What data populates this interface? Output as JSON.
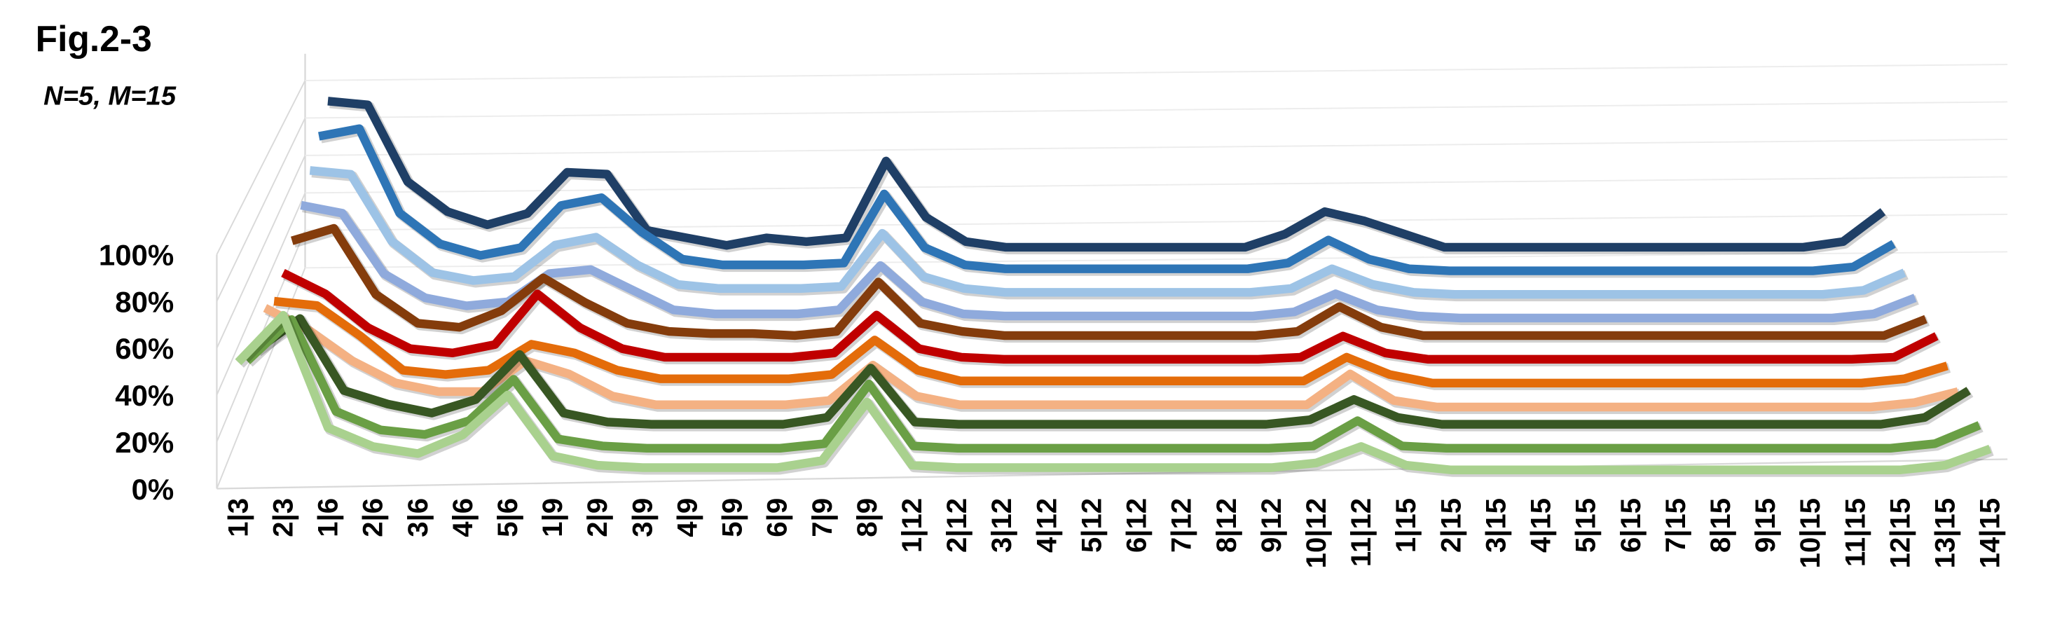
{
  "chart_data": {
    "type": "line",
    "title": "Fig.2-3",
    "subtitle": "N=5, M=15",
    "categories": [
      "1|3",
      "2|3",
      "1|6",
      "2|6",
      "3|6",
      "4|6",
      "5|6",
      "1|9",
      "2|9",
      "3|9",
      "4|9",
      "5|9",
      "6|9",
      "7|9",
      "8|9",
      "1|12",
      "2|12",
      "3|12",
      "4|12",
      "5|12",
      "6|12",
      "7|12",
      "8|12",
      "9|12",
      "10|12",
      "11|12",
      "1|15",
      "2|15",
      "3|15",
      "4|15",
      "5|15",
      "6|15",
      "7|15",
      "8|15",
      "9|15",
      "10|15",
      "11|15",
      "12|15",
      "13|15",
      "14|15"
    ],
    "ylim": [
      0,
      100
    ],
    "yticks": [
      {
        "value": 0,
        "label": "0%"
      },
      {
        "value": 20,
        "label": "20%"
      },
      {
        "value": 40,
        "label": "40%"
      },
      {
        "value": 60,
        "label": "60%"
      },
      {
        "value": 80,
        "label": "80%"
      },
      {
        "value": 100,
        "label": "100%"
      }
    ],
    "grid": true,
    "series": [
      {
        "color": "#a9d18e",
        "values": [
          54,
          74,
          26,
          18,
          15,
          23,
          40,
          14,
          10,
          9,
          9,
          9,
          9,
          12,
          37,
          10,
          9,
          9,
          9,
          9,
          9,
          9,
          9,
          9,
          11,
          18,
          10,
          8,
          8,
          8,
          8,
          8,
          8,
          8,
          8,
          8,
          8,
          8,
          10,
          17
        ]
      },
      {
        "color": "#6a9f45",
        "values": [
          46,
          64,
          24,
          16,
          14,
          20,
          38,
          12,
          9,
          8,
          8,
          8,
          8,
          10,
          36,
          9,
          8,
          8,
          8,
          8,
          8,
          8,
          8,
          8,
          9,
          20,
          9,
          8,
          8,
          8,
          8,
          8,
          8,
          8,
          8,
          8,
          8,
          8,
          10,
          18
        ]
      },
      {
        "color": "#385723",
        "values": [
          42,
          56,
          24,
          18,
          14,
          20,
          40,
          14,
          10,
          9,
          9,
          9,
          9,
          12,
          34,
          10,
          9,
          9,
          9,
          9,
          9,
          9,
          9,
          9,
          11,
          20,
          12,
          9,
          9,
          9,
          9,
          9,
          9,
          9,
          9,
          9,
          9,
          9,
          12,
          24
        ]
      },
      {
        "color": "#f4b183",
        "values": [
          52,
          42,
          28,
          18,
          14,
          14,
          28,
          22,
          12,
          8,
          8,
          8,
          8,
          10,
          26,
          12,
          8,
          8,
          8,
          8,
          8,
          8,
          8,
          8,
          8,
          22,
          10,
          7,
          7,
          7,
          7,
          7,
          7,
          7,
          7,
          7,
          7,
          7,
          9,
          14
        ]
      },
      {
        "color": "#e46c0a",
        "values": [
          46,
          44,
          30,
          14,
          12,
          14,
          26,
          22,
          14,
          10,
          10,
          10,
          10,
          12,
          28,
          14,
          9,
          9,
          9,
          9,
          9,
          9,
          9,
          9,
          9,
          20,
          12,
          8,
          8,
          8,
          8,
          8,
          8,
          8,
          8,
          8,
          8,
          8,
          10,
          16
        ]
      },
      {
        "color": "#c00000",
        "values": [
          50,
          40,
          24,
          14,
          12,
          16,
          40,
          24,
          14,
          10,
          10,
          10,
          10,
          12,
          30,
          14,
          10,
          9,
          9,
          9,
          9,
          9,
          9,
          9,
          10,
          20,
          12,
          9,
          9,
          9,
          9,
          9,
          9,
          9,
          9,
          9,
          9,
          9,
          10,
          20
        ]
      },
      {
        "color": "#843c0c",
        "values": [
          56,
          62,
          30,
          16,
          14,
          22,
          38,
          26,
          16,
          12,
          11,
          11,
          10,
          12,
          36,
          16,
          12,
          10,
          10,
          10,
          10,
          10,
          10,
          10,
          12,
          24,
          14,
          10,
          10,
          10,
          10,
          10,
          10,
          10,
          10,
          10,
          10,
          10,
          10,
          18
        ]
      },
      {
        "color": "#8faadc",
        "values": [
          64,
          60,
          30,
          18,
          14,
          16,
          30,
          32,
          22,
          12,
          10,
          10,
          10,
          12,
          34,
          16,
          10,
          9,
          9,
          9,
          9,
          9,
          9,
          9,
          11,
          20,
          12,
          9,
          8,
          8,
          8,
          8,
          8,
          8,
          8,
          8,
          8,
          8,
          10,
          18
        ]
      },
      {
        "color": "#9dc3e6",
        "values": [
          72,
          70,
          36,
          20,
          16,
          18,
          34,
          38,
          24,
          14,
          12,
          12,
          12,
          13,
          40,
          18,
          12,
          10,
          10,
          10,
          10,
          10,
          10,
          10,
          12,
          22,
          14,
          10,
          9,
          9,
          9,
          9,
          9,
          9,
          9,
          9,
          9,
          9,
          11,
          20
        ]
      },
      {
        "color": "#2e75b6",
        "values": [
          80,
          84,
          40,
          24,
          18,
          22,
          44,
          48,
          30,
          16,
          13,
          13,
          13,
          14,
          50,
          22,
          13,
          11,
          11,
          11,
          11,
          11,
          11,
          11,
          14,
          26,
          16,
          11,
          10,
          10,
          10,
          10,
          10,
          10,
          10,
          10,
          10,
          10,
          12,
          24
        ]
      },
      {
        "color": "#1f3f66",
        "values": [
          89,
          87,
          46,
          30,
          23,
          29,
          51,
          50,
          20,
          16,
          12,
          16,
          14,
          16,
          57,
          27,
          14,
          11,
          11,
          11,
          11,
          11,
          11,
          11,
          18,
          30,
          25,
          18,
          11,
          11,
          11,
          11,
          11,
          11,
          11,
          11,
          11,
          11,
          14,
          30
        ]
      }
    ]
  }
}
